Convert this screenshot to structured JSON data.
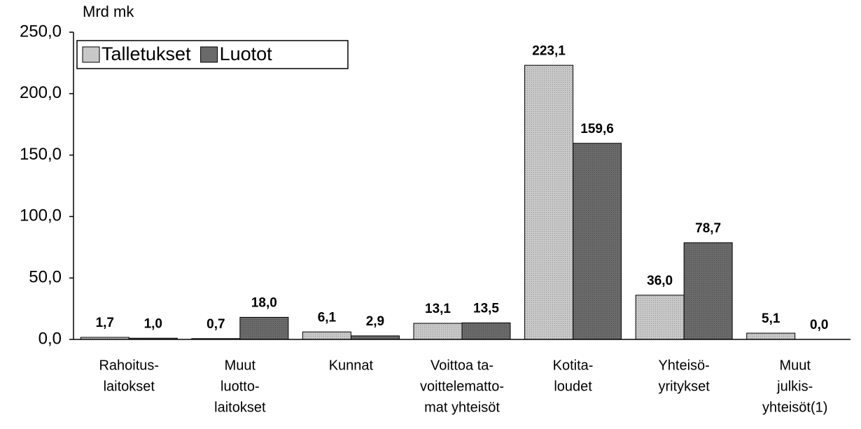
{
  "chart_data": {
    "type": "bar",
    "y_axis_label": "Mrd mk",
    "categories": [
      [
        "Rahoitus-",
        "laitokset"
      ],
      [
        "Muut",
        "luotto-",
        "laitokset"
      ],
      [
        "Kunnat"
      ],
      [
        "Voittoa ta-",
        "voittelematto-",
        "mat yhteisöt"
      ],
      [
        "Kotita-",
        "loudet"
      ],
      [
        "Yhteisö-",
        "yritykset"
      ],
      [
        "Muut",
        "julkis-",
        "yhteisöt(1)"
      ]
    ],
    "series": [
      {
        "name": "Talletukset",
        "color": "#c8c8c8",
        "values": [
          1.7,
          0.7,
          6.1,
          13.1,
          223.1,
          36.0,
          5.1
        ],
        "value_labels": [
          "1,7",
          "0,7",
          "6,1",
          "13,1",
          "223,1",
          "36,0",
          "5,1"
        ]
      },
      {
        "name": "Luotot",
        "color": "#6a6a6a",
        "values": [
          1.0,
          18.0,
          2.9,
          13.5,
          159.6,
          78.7,
          0.0
        ],
        "value_labels": [
          "1,0",
          "18,0",
          "2,9",
          "13,5",
          "159,6",
          "78,7",
          "0,0"
        ]
      }
    ],
    "ylim": [
      0,
      250
    ],
    "yticks": [
      {
        "value": 0,
        "label": "0,0"
      },
      {
        "value": 50,
        "label": "50,0"
      },
      {
        "value": 100,
        "label": "100,0"
      },
      {
        "value": 150,
        "label": "150,0"
      },
      {
        "value": 200,
        "label": "200,0"
      },
      {
        "value": 250,
        "label": "250,0"
      }
    ],
    "legend": "top-left"
  }
}
